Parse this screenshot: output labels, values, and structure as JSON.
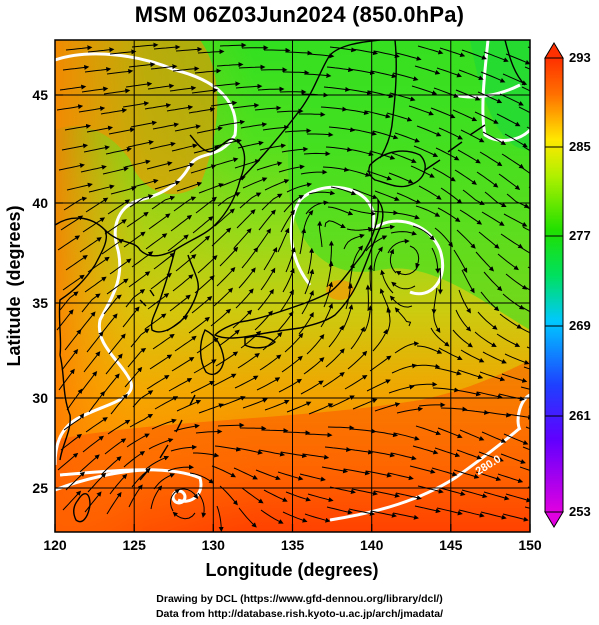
{
  "title": "MSM 06Z03Jun2024 (850.0hPa)",
  "axes": {
    "xlabel": "Longitude (degrees)",
    "ylabel": "Latitude  (degrees)",
    "xticks": [
      "120",
      "125",
      "130",
      "135",
      "140",
      "145",
      "150"
    ],
    "yticks": [
      "25",
      "30",
      "35",
      "40",
      "45"
    ]
  },
  "chart_data": {
    "type": "heatmap",
    "title": "MSM 06Z03Jun2024 (850.0hPa)",
    "xlabel": "Longitude (degrees)",
    "ylabel": "Latitude  (degrees)",
    "xlim": [
      120,
      150
    ],
    "ylim": [
      22.4,
      47.6
    ],
    "colorbar_ticks": [
      253,
      261,
      269,
      277,
      285,
      293
    ],
    "contour_label": "280.0",
    "grid": true
  },
  "colorbar": {
    "labels": [
      "293",
      "285",
      "277",
      "269",
      "261",
      "253"
    ],
    "colors": [
      "#c800c8",
      "#1e1eff",
      "#00c8ff",
      "#00e000",
      "#ffff00",
      "#ff5000",
      "#ff3000"
    ]
  },
  "credits": {
    "line1": "Drawing by DCL (https://www.gfd-dennou.org/library/dcl/)",
    "line2": "Data from http://database.rish.kyoto-u.ac.jp/arch/jmadata/"
  }
}
